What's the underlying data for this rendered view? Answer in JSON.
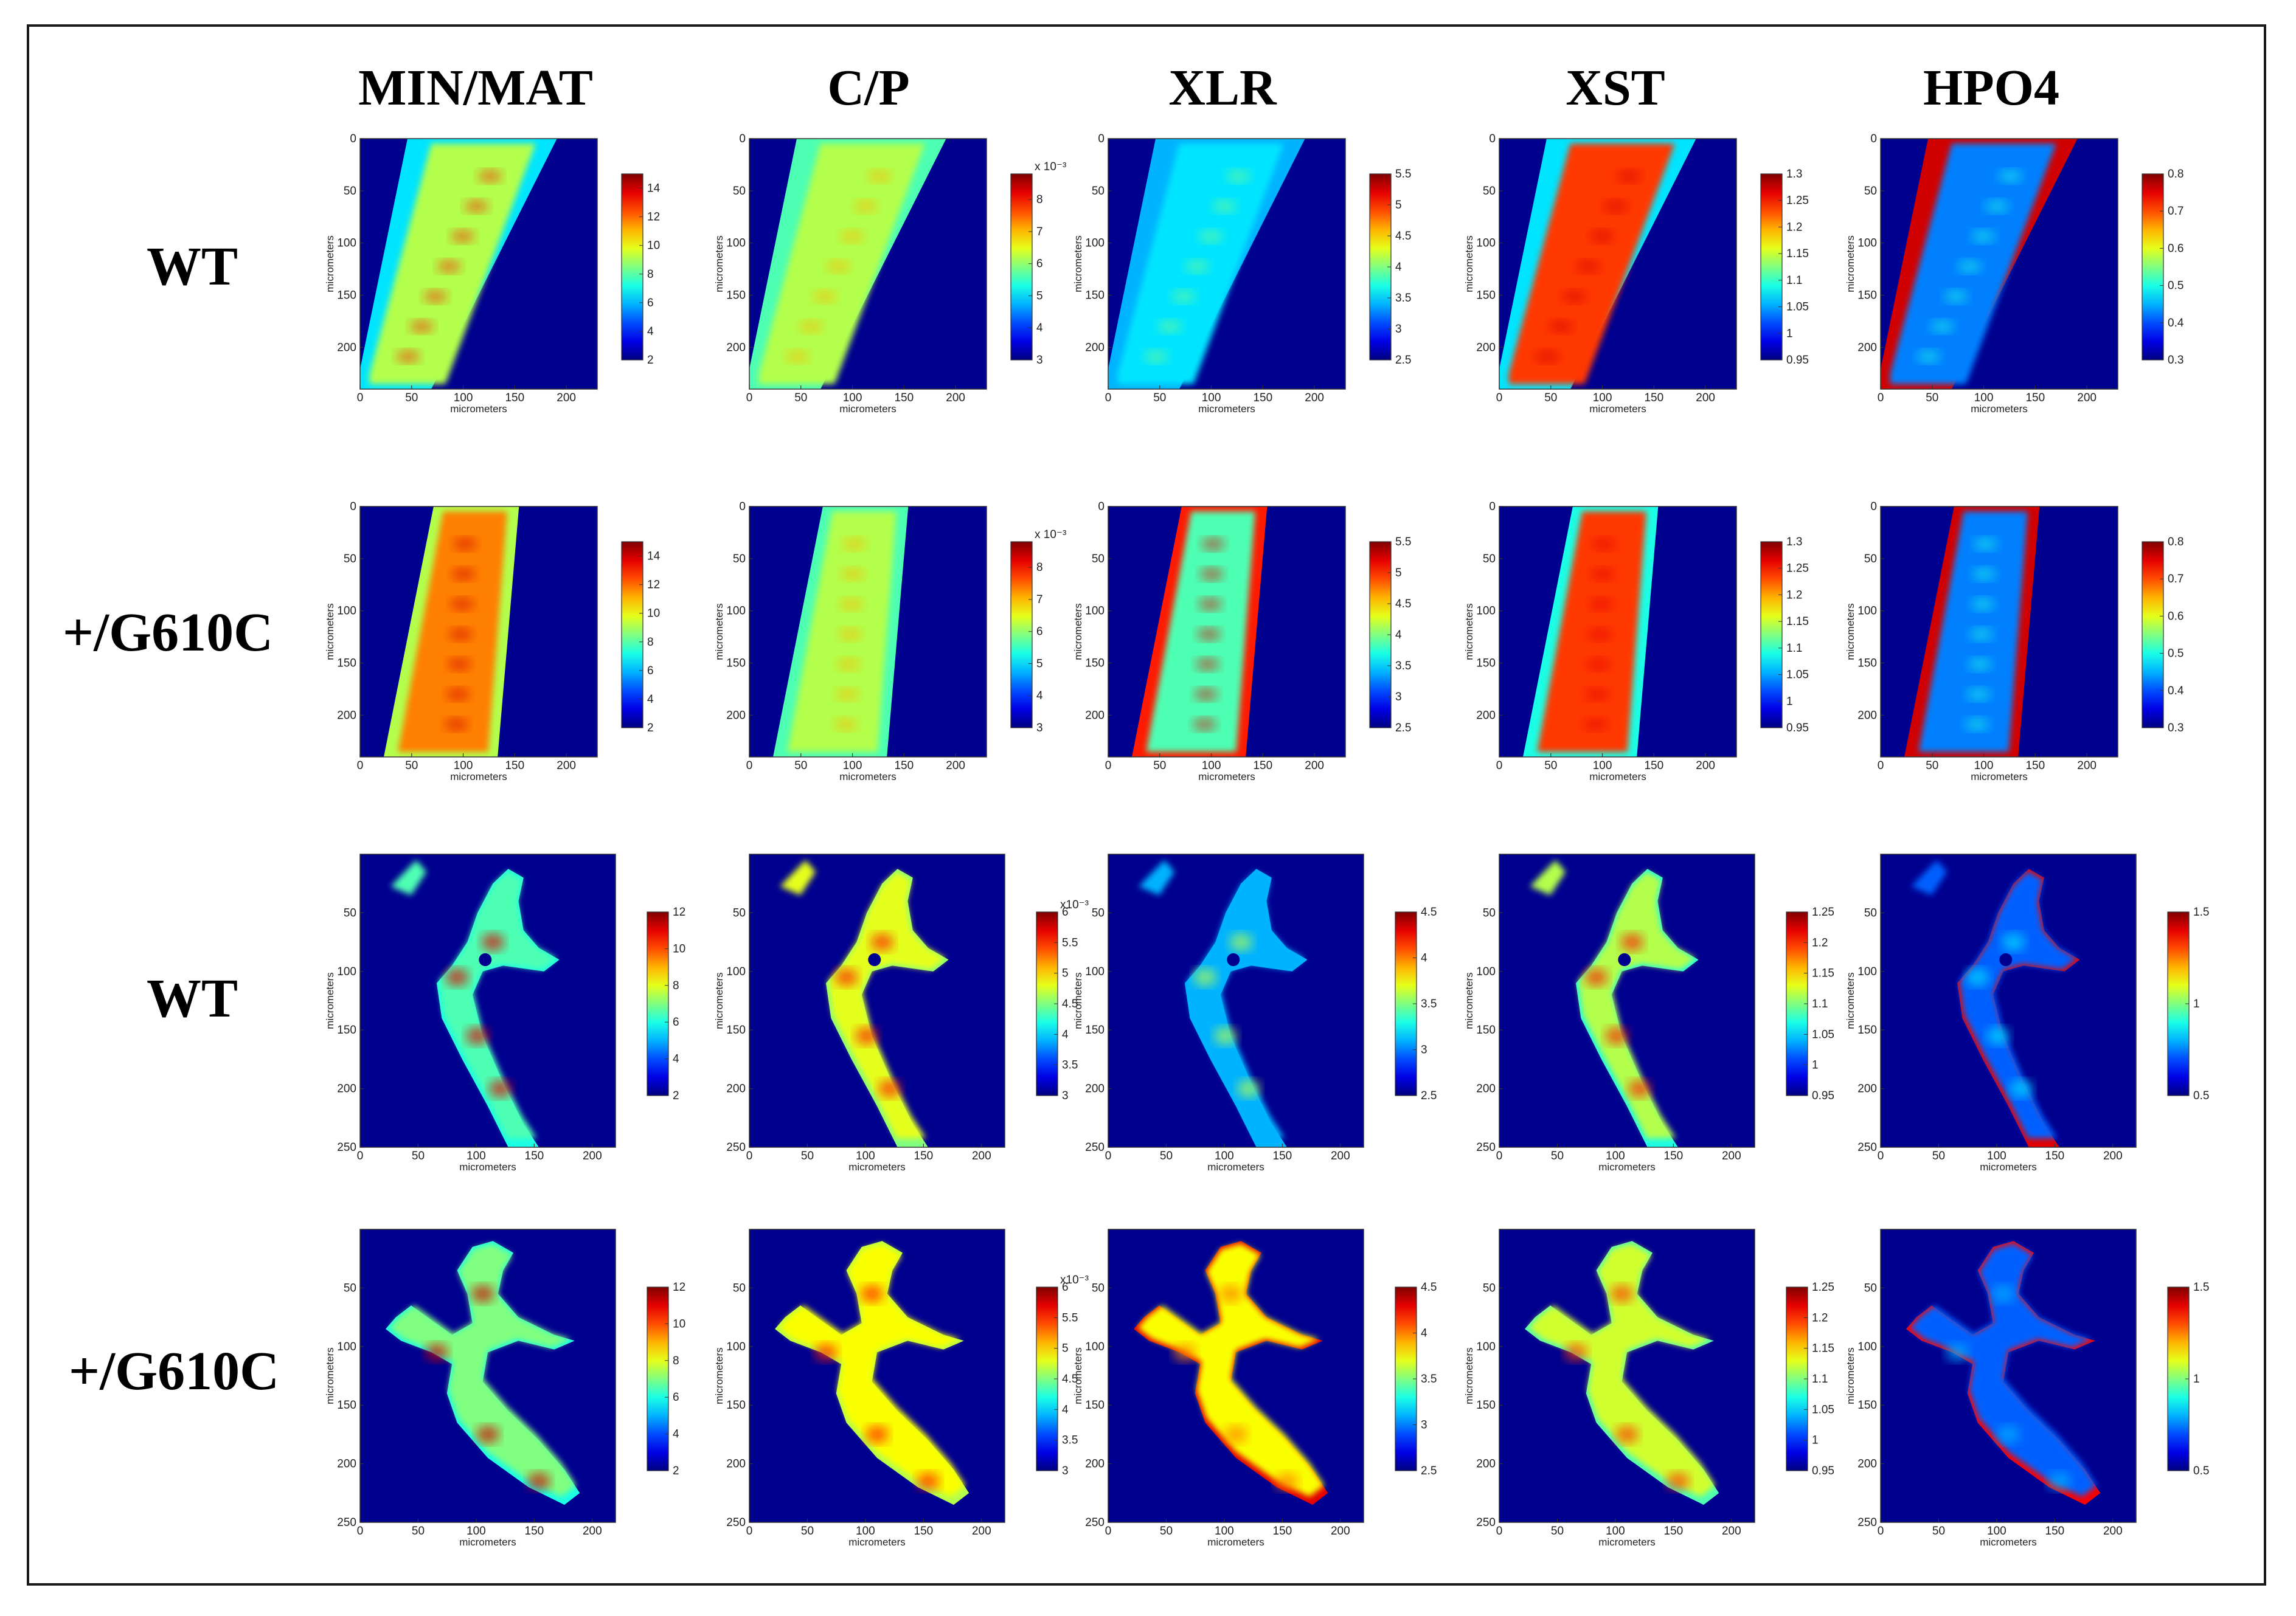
{
  "colors": {
    "background": "#00008f",
    "frame": "#1a1a1a"
  },
  "colormap": "jet",
  "columns": [
    "MIN/MAT",
    "C/P",
    "XLR",
    "XST",
    "HPO4"
  ],
  "rows": [
    "WT",
    "+/G610C",
    "WT",
    "+/G610C"
  ],
  "chart_data": {
    "type": "heatmap",
    "layout": "4 rows x 5 columns of colored spectroscopic image maps",
    "xlabel": "micrometers",
    "ylabel": "micrometers",
    "panel_groups": [
      {
        "rows": [
          "WT",
          "+/G610C"
        ],
        "xlim": [
          0,
          230
        ],
        "ylim": [
          0,
          240
        ],
        "x_ticks": [
          "0",
          "50",
          "100",
          "150",
          "200"
        ],
        "y_ticks": [
          "0",
          "50",
          "100",
          "150",
          "200"
        ],
        "colorbars": [
          {
            "column": "MIN/MAT",
            "range": [
              2,
              15
            ],
            "ticks": [
              "14",
              "12",
              "10",
              "8",
              "6",
              "4",
              "2"
            ],
            "exponent": ""
          },
          {
            "column": "C/P",
            "range": [
              3,
              8.8
            ],
            "ticks": [
              "8",
              "7",
              "6",
              "5",
              "4",
              "3"
            ],
            "exponent": "x 10⁻³"
          },
          {
            "column": "XLR",
            "range": [
              2.5,
              5.5
            ],
            "ticks": [
              "5.5",
              "5",
              "4.5",
              "4",
              "3.5",
              "3",
              "2.5"
            ],
            "exponent": ""
          },
          {
            "column": "XST",
            "range": [
              0.95,
              1.3
            ],
            "ticks": [
              "1.3",
              "1.25",
              "1.2",
              "1.15",
              "1.1",
              "1.05",
              "1",
              "0.95"
            ],
            "exponent": ""
          },
          {
            "column": "HPO4",
            "range": [
              0.3,
              0.8
            ],
            "ticks": [
              "0.8",
              "0.7",
              "0.6",
              "0.5",
              "0.4",
              "0.3"
            ],
            "exponent": ""
          }
        ]
      },
      {
        "rows": [
          "WT",
          "+/G610C"
        ],
        "xlim": [
          0,
          220
        ],
        "ylim": [
          0,
          250
        ],
        "x_ticks": [
          "0",
          "50",
          "100",
          "150",
          "200"
        ],
        "y_ticks": [
          "50",
          "100",
          "150",
          "200",
          "250"
        ],
        "colorbars": [
          {
            "column": "MIN/MAT",
            "range": [
              2,
              12
            ],
            "ticks": [
              "12",
              "10",
              "8",
              "6",
              "4",
              "2"
            ],
            "exponent": ""
          },
          {
            "column": "C/P",
            "range": [
              3,
              6
            ],
            "ticks": [
              "6",
              "5.5",
              "5",
              "4.5",
              "4",
              "3.5",
              "3"
            ],
            "exponent": "x10⁻³"
          },
          {
            "column": "XLR",
            "range": [
              2.5,
              4.5
            ],
            "ticks": [
              "4.5",
              "4",
              "3.5",
              "3",
              "2.5"
            ],
            "exponent": ""
          },
          {
            "column": "XST",
            "range": [
              0.95,
              1.25
            ],
            "ticks": [
              "1.25",
              "1.2",
              "1.15",
              "1.1",
              "1.05",
              "1",
              "0.95"
            ],
            "exponent": ""
          },
          {
            "column": "HPO4",
            "range": [
              0.5,
              1.5
            ],
            "ticks": [
              "1.5",
              "1",
              "0.5"
            ],
            "exponent": ""
          }
        ]
      }
    ]
  }
}
